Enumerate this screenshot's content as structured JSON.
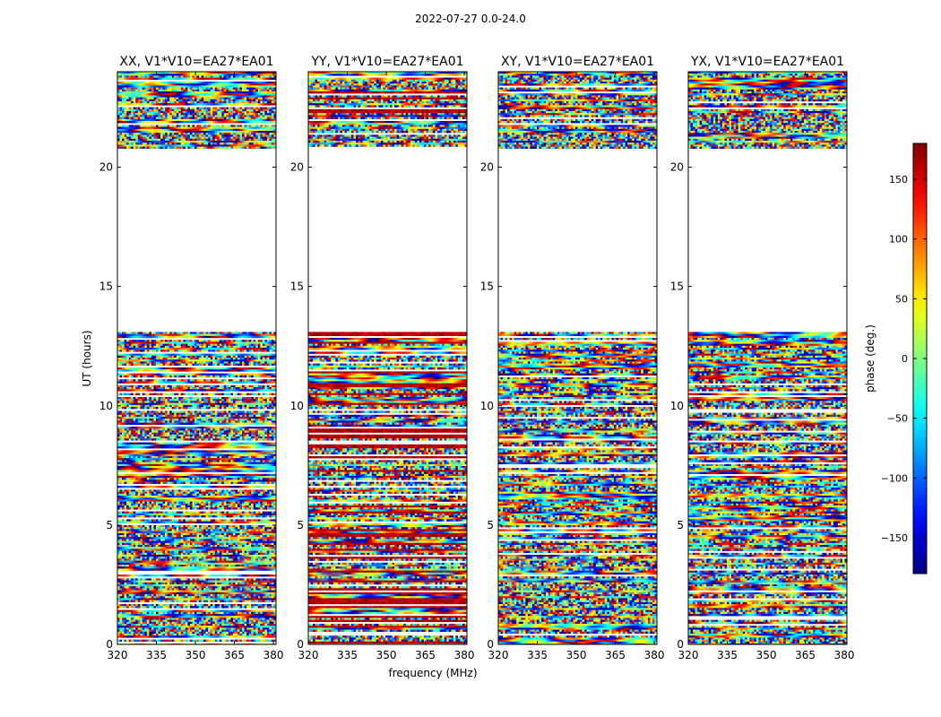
{
  "figure": {
    "suptitle": "2022-07-27 0.0-24.0"
  },
  "colorbar": {
    "label": "phase (deg.)",
    "range": [
      -180,
      180
    ],
    "ticks": [
      -150,
      -100,
      -50,
      0,
      50,
      100,
      150
    ],
    "tick_labels": [
      "−150",
      "−100",
      "−50",
      "0",
      "50",
      "100",
      "150"
    ],
    "colormap": "jet",
    "colors": [
      "#00007f",
      "#0000ff",
      "#007fff",
      "#00ffff",
      "#7fff7f",
      "#ffff00",
      "#ff7f00",
      "#ff0000",
      "#7f0000"
    ]
  },
  "chart_data": {
    "type": "heatmap",
    "title": "2022-07-27 0.0-24.0",
    "xlabel": "frequency (MHz)",
    "ylabel": "UT (hours)",
    "xlim": [
      320,
      381
    ],
    "ylim": [
      0,
      24
    ],
    "xticks": [
      320,
      335,
      350,
      365,
      380
    ],
    "yticks": [
      0,
      5,
      10,
      15,
      20
    ],
    "value_label": "phase (deg.)",
    "value_range": [
      -180,
      180
    ],
    "data_gaps_ut": [
      [
        13.1,
        20.8
      ]
    ],
    "panels": [
      {
        "title": "XX, V1*V10=EA27*EA01",
        "polarization": "XX",
        "baseline": "V1*V10=EA27*EA01"
      },
      {
        "title": "YY, V1*V10=EA27*EA01",
        "polarization": "YY",
        "baseline": "V1*V10=EA27*EA01"
      },
      {
        "title": "XY, V1*V10=EA27*EA01",
        "polarization": "XY",
        "baseline": "V1*V10=EA27*EA01"
      },
      {
        "title": "YX, V1*V10=EA27*EA01",
        "polarization": "YX",
        "baseline": "V1*V10=EA27*EA01"
      }
    ]
  }
}
